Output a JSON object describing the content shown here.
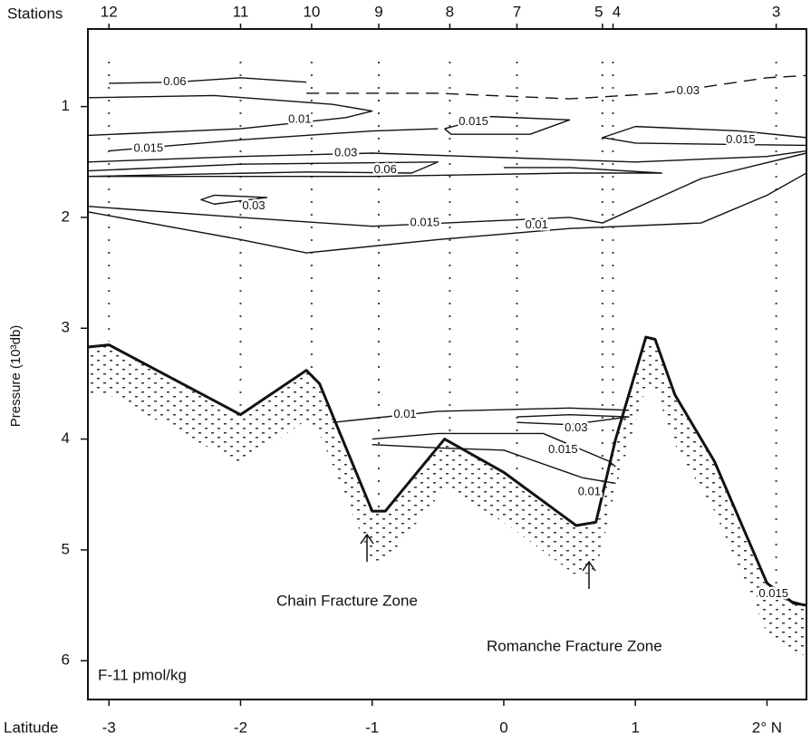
{
  "chart_data": {
    "type": "contour-section",
    "x_label": "Latitude",
    "y_label": "Pressure (10³db)",
    "top_label": "Stations",
    "note": "F-11 pmol/kg",
    "annotations": [
      "Chain Fracture Zone",
      "Romanche Fracture Zone"
    ],
    "xlim": [
      -3.16,
      2.3
    ],
    "ylim": [
      6.35,
      0.3
    ],
    "xticks": [
      -3,
      -2,
      -1,
      0,
      1,
      {
        "value": 2,
        "label": "2° N"
      }
    ],
    "yticks": [
      1,
      2,
      3,
      4,
      5,
      6
    ],
    "stations": [
      {
        "value": -3.0,
        "label": "12"
      },
      {
        "value": -2.0,
        "label": "11"
      },
      {
        "value": -1.46,
        "label": "10"
      },
      {
        "value": -0.95,
        "label": "9"
      },
      {
        "value": -0.41,
        "label": "8"
      },
      {
        "value": 0.1,
        "label": "7"
      },
      {
        "value": 0.75,
        "label": "5"
      },
      {
        "value": 0.83,
        "label": "4"
      },
      {
        "value": 2.07,
        "label": "3"
      }
    ],
    "bottom": {
      "x": [
        -3.16,
        -3.0,
        -2.0,
        -1.5,
        -1.4,
        -1.0,
        -0.9,
        -0.45,
        0.0,
        0.55,
        0.7,
        0.85,
        1.08,
        1.15,
        1.3,
        1.6,
        2.0,
        2.2,
        2.3
      ],
      "y": [
        3.17,
        3.15,
        3.78,
        3.38,
        3.5,
        4.65,
        4.65,
        4.0,
        4.3,
        4.78,
        4.75,
        4.0,
        3.08,
        3.1,
        3.6,
        4.2,
        5.3,
        5.48,
        5.5
      ]
    },
    "contours": [
      {
        "level": 0.06,
        "dashed": false,
        "x": [
          -3.0,
          -2.5,
          -2.0,
          -1.5
        ],
        "y": [
          0.79,
          0.78,
          0.74,
          0.78
        ],
        "label_x": -2.5,
        "label_y": 0.78
      },
      {
        "level": 0.03,
        "dashed": true,
        "x": [
          -1.5,
          -0.5,
          0.5,
          1.2,
          2.0,
          2.3
        ],
        "y": [
          0.88,
          0.88,
          0.93,
          0.88,
          0.74,
          0.72
        ],
        "label_x": 1.4,
        "label_y": 0.86
      },
      {
        "level": 0.01,
        "dashed": false,
        "x": [
          -3.16,
          -2.2,
          -1.3,
          -1.0,
          -1.2,
          -2.0,
          -3.16
        ],
        "y": [
          0.92,
          0.9,
          0.98,
          1.04,
          1.1,
          1.2,
          1.26
        ],
        "label_x": -1.55,
        "label_y": 1.12
      },
      {
        "level": 0.015,
        "dashed": false,
        "x": [
          -3.0,
          -2.0,
          -1.0,
          -0.5
        ],
        "y": [
          1.4,
          1.3,
          1.22,
          1.2
        ],
        "label_x": -2.7,
        "label_y": 1.38
      },
      {
        "level": 0.015,
        "dashed": false,
        "x": [
          -0.45,
          -0.1,
          0.5,
          0.2,
          -0.4,
          -0.45
        ],
        "y": [
          1.2,
          1.09,
          1.12,
          1.25,
          1.25,
          1.2
        ],
        "label_x": -0.23,
        "label_y": 1.14
      },
      {
        "level": 0.015,
        "dashed": false,
        "x": [
          2.3,
          1.8,
          1.0,
          0.75,
          1.0,
          2.3
        ],
        "y": [
          1.28,
          1.22,
          1.18,
          1.28,
          1.33,
          1.35
        ],
        "label_x": 1.8,
        "label_y": 1.3
      },
      {
        "level": 0.03,
        "dashed": false,
        "x": [
          -3.16,
          -2.0,
          -1.0,
          0.0,
          1.0,
          2.0,
          2.3
        ],
        "y": [
          1.5,
          1.45,
          1.42,
          1.46,
          1.5,
          1.45,
          1.4
        ],
        "label_x": -1.2,
        "label_y": 1.42
      },
      {
        "level": 0.06,
        "dashed": false,
        "x": [
          -3.16,
          -2.0,
          -0.5,
          -0.7,
          -1.5,
          -3.16,
          -1.0,
          0.5,
          1.2,
          0.5,
          0.0
        ],
        "y": [
          1.58,
          1.52,
          1.5,
          1.6,
          1.59,
          1.63,
          1.63,
          1.6,
          1.6,
          1.55,
          1.55
        ],
        "label_x": -0.9,
        "label_y": 1.57
      },
      {
        "level": 0.03,
        "dashed": false,
        "x": [
          -2.2,
          -1.8,
          -2.2,
          -2.3,
          -2.2
        ],
        "y": [
          1.8,
          1.82,
          1.88,
          1.84,
          1.8
        ],
        "label_x": -1.9,
        "label_y": 1.9
      },
      {
        "level": 0.015,
        "dashed": false,
        "x": [
          -3.16,
          -2.0,
          -1.0,
          0.5,
          0.75,
          1.5,
          2.3
        ],
        "y": [
          1.9,
          2.0,
          2.08,
          2.0,
          2.05,
          1.65,
          1.42
        ],
        "label_x": -0.6,
        "label_y": 2.05
      },
      {
        "level": 0.01,
        "dashed": false,
        "x": [
          -3.16,
          -2.0,
          -1.5,
          -0.5,
          0.5,
          1.5,
          2.0,
          2.3
        ],
        "y": [
          1.95,
          2.2,
          2.32,
          2.2,
          2.1,
          2.05,
          1.8,
          1.6
        ],
        "label_x": 0.25,
        "label_y": 2.07
      },
      {
        "level": 0.01,
        "dashed": false,
        "x": [
          -1.3,
          -0.5,
          0.5,
          0.95
        ],
        "y": [
          3.85,
          3.75,
          3.72,
          3.74
        ],
        "label_x": -0.75,
        "label_y": 3.78
      },
      {
        "level": 0.03,
        "dashed": false,
        "x": [
          0.1,
          0.5,
          0.95,
          0.5,
          0.1
        ],
        "y": [
          3.8,
          3.78,
          3.8,
          3.87,
          3.85
        ],
        "label_x": 0.55,
        "label_y": 3.9
      },
      {
        "level": 0.015,
        "dashed": false,
        "x": [
          -1.0,
          -0.5,
          0.3,
          0.8,
          0.85
        ],
        "y": [
          4.0,
          3.95,
          3.95,
          4.2,
          4.25
        ],
        "label_x": 0.45,
        "label_y": 4.1
      },
      {
        "level": 0.01,
        "dashed": false,
        "x": [
          -1.0,
          -0.5,
          0.0,
          0.6,
          0.85
        ],
        "y": [
          4.05,
          4.08,
          4.1,
          4.35,
          4.4
        ],
        "label_x": 0.65,
        "label_y": 4.48
      },
      {
        "level": 0.015,
        "dashed": false,
        "x": [
          2.0,
          2.3
        ],
        "y": [
          5.4,
          5.5
        ],
        "label_x": 2.05,
        "label_y": 5.4
      }
    ]
  }
}
